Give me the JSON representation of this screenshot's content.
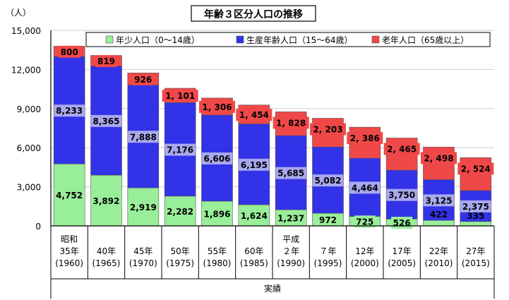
{
  "chart_data": {
    "type": "bar",
    "stacked": true,
    "title": "年齢３区分人口の推移",
    "yunit": "（人）",
    "xlabel": "実績",
    "ylim": [
      0,
      15000
    ],
    "yticks": [
      "0",
      "3,000",
      "6,000",
      "9,000",
      "12,000",
      "15,000"
    ],
    "categories": [
      [
        "昭和",
        "35年",
        "(1960)"
      ],
      [
        "40年",
        "(1965)"
      ],
      [
        "45年",
        "(1970)"
      ],
      [
        "50年",
        "(1975)"
      ],
      [
        "55年",
        "(1980)"
      ],
      [
        "60年",
        "(1985)"
      ],
      [
        "平成",
        "２年",
        "(1990)"
      ],
      [
        "７年",
        "(1995)"
      ],
      [
        "12年",
        "(2000)"
      ],
      [
        "17年",
        "(2005)"
      ],
      [
        "22年",
        "(2010)"
      ],
      [
        "27年",
        "(2015)"
      ]
    ],
    "series": [
      {
        "name": "年少人口（0〜14歳）",
        "color": "#99ee99",
        "label_bg": "#99ee99",
        "values": [
          4752,
          3892,
          2919,
          2282,
          1896,
          1624,
          1237,
          972,
          725,
          526,
          422,
          335
        ],
        "labels": [
          "4,752",
          "3,892",
          "2,919",
          "2,282",
          "1,896",
          "1,624",
          "1,237",
          "972",
          "725",
          "526",
          "422",
          "335"
        ]
      },
      {
        "name": "生産年齢人口（15〜64歳）",
        "color": "#3232e8",
        "label_bg": "#a8a8f0",
        "values": [
          8233,
          8365,
          7888,
          7176,
          6606,
          6195,
          5685,
          5082,
          4464,
          3750,
          3125,
          2375
        ],
        "labels": [
          "8,233",
          "8,365",
          "7,888",
          "7,176",
          "6,606",
          "6,195",
          "5,685",
          "5,082",
          "4,464",
          "3,750",
          "3,125",
          "2,375"
        ]
      },
      {
        "name": "老年人口（65歳以上）",
        "color": "#f04848",
        "label_bg": "#f04848",
        "values": [
          800,
          819,
          926,
          1101,
          1306,
          1454,
          1828,
          2203,
          2386,
          2465,
          2498,
          2524
        ],
        "labels": [
          "800",
          "819",
          "926",
          "1, 101",
          "1, 306",
          "1, 454",
          "1, 828",
          "2, 203",
          "2, 386",
          "2, 465",
          "2, 498",
          "2, 524"
        ]
      }
    ],
    "grid": true,
    "legend_position": "top"
  }
}
